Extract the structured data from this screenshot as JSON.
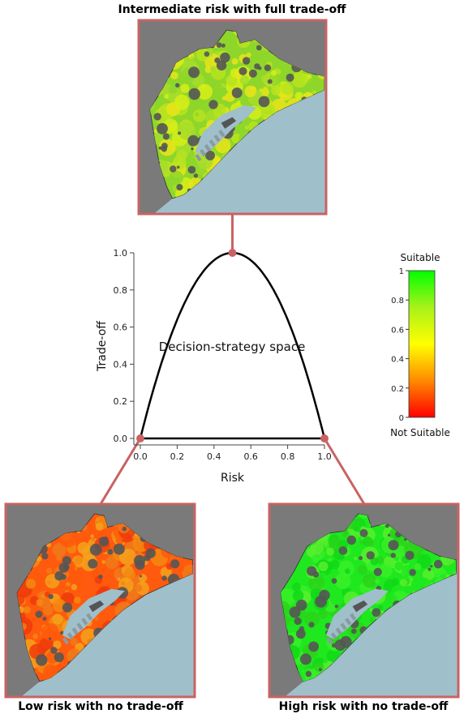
{
  "maps": {
    "top": {
      "title": "Intermediate risk with full trade-off",
      "palette": [
        "#8fd62a",
        "#b8e31e",
        "#d6ee18",
        "#e9e41a",
        "#a7dd2c"
      ]
    },
    "bottom_left": {
      "title": "Low risk with no trade-off",
      "palette": [
        "#ff5a0d",
        "#f38a12",
        "#f5a21d",
        "#ee3b0c",
        "#f07a1a"
      ]
    },
    "bottom_right": {
      "title": "High risk with no trade-off",
      "palette": [
        "#1fe81f",
        "#38f028",
        "#10d818",
        "#58ee2e",
        "#2ad41a"
      ]
    }
  },
  "plot": {
    "xlabel": "Risk",
    "ylabel": "Trade-off",
    "xlim": [
      0,
      1
    ],
    "ylim": [
      0,
      1
    ],
    "x_ticks": [
      "0.0",
      "0.2",
      "0.4",
      "0.6",
      "0.8",
      "1.0"
    ],
    "y_ticks": [
      "0.0",
      "0.2",
      "0.4",
      "0.6",
      "0.8",
      "1.0"
    ],
    "annotation": "Decision-strategy space",
    "points": [
      {
        "name": "low-risk",
        "risk": 0.0,
        "tradeoff": 0.0
      },
      {
        "name": "intermediate-risk",
        "risk": 0.5,
        "tradeoff": 1.0
      },
      {
        "name": "high-risk",
        "risk": 1.0,
        "tradeoff": 0.0
      }
    ]
  },
  "legend": {
    "top_label": "Suitable",
    "bottom_label": "Not Suitable",
    "ticks": [
      "0",
      "0.2",
      "0.4",
      "0.6",
      "0.8",
      "1"
    ]
  },
  "colors": {
    "frame": "#c96363",
    "land_gray": "#7a7a7a",
    "sea": "#9fbfcb",
    "urban": "#555555"
  }
}
